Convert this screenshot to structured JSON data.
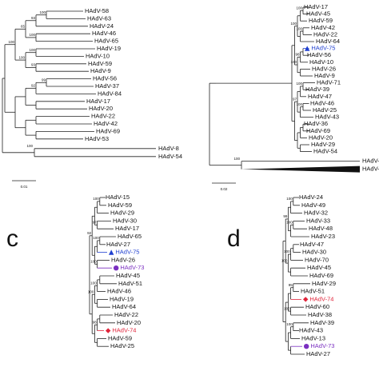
{
  "panels": [
    {
      "leaves": [
        "HAdV-58",
        "HAdV-63",
        "HAdV-24",
        "HAdV-46",
        "HAdV-65",
        "HAdV-19",
        "HAdV-10",
        "HAdV-59",
        "HAdV-9",
        "HAdV-56",
        "HAdV-37",
        "HAdV-84",
        "HAdV-17",
        "HAdV-20",
        "HAdV-22",
        "HAdV-42",
        "HAdV-69",
        "HAdV-53"
      ],
      "outgroups": [
        "HAdV-8",
        "HAdV-54"
      ],
      "bootstraps": [
        100,
        93,
        100,
        65,
        100,
        93,
        100,
        100,
        99,
        92
      ],
      "outgroup_support": 100,
      "scale": "0.01"
    },
    {
      "leaves": [
        "HAdV-17",
        "HAdV-45",
        "HAdV-59",
        "HAdV-42",
        "HAdV-22",
        "HAdV-64",
        {
          "label": "HAdV-75",
          "marker": "triangle",
          "color": "#1f3fd0"
        },
        "HAdV-56",
        "HAdV-10",
        "HAdV-26",
        "HAdV-9",
        "HAdV-71",
        "HAdV-39",
        "HAdV-47",
        "HAdV-46",
        "HAdV-25",
        "HAdV-43",
        "HAdV-36",
        "HAdV-69",
        "HAdV-20",
        "HAdV-29",
        "HAdV-54"
      ],
      "outgroups": [
        "HAdV-C",
        "HAdV-B"
      ],
      "bootstraps": [
        100,
        100,
        100,
        98,
        100,
        100,
        100,
        97
      ],
      "outgroup_support": 100,
      "scale": "0.02"
    },
    {
      "letter": "c",
      "leaves": [
        "HAdV-15",
        "HAdV-59",
        "HAdV-29",
        "HAdV-30",
        "HAdV-17",
        "HAdV-65",
        "HAdV-27",
        {
          "label": "HAdV-75",
          "marker": "triangle",
          "color": "#1f3fd0"
        },
        "HAdV-26",
        {
          "label": "HAdV-73",
          "marker": "circle",
          "color": "#7a2fc0"
        },
        "HAdV-45",
        "HAdV-51",
        "HAdV-46",
        "HAdV-19",
        "HAdV-64",
        "HAdV-22",
        "HAdV-20",
        {
          "label": "HAdV-74",
          "marker": "diamond",
          "color": "#e0243a"
        },
        "HAdV-59",
        "HAdV-25"
      ],
      "bootstraps": [
        100,
        97,
        100,
        100,
        92,
        100,
        100,
        98
      ]
    },
    {
      "letter": "d",
      "leaves": [
        "HAdV-24",
        "HAdV-49",
        "HAdV-32",
        "HAdV-33",
        "HAdV-48",
        "HAdV-23",
        "HAdV-47",
        "HAdV-30",
        "HAdV-70",
        "HAdV-45",
        "HAdV-69",
        "HAdV-29",
        "HAdV-51",
        {
          "label": "HAdV-74",
          "marker": "diamond",
          "color": "#e0243a"
        },
        "HAdV-60",
        "HAdV-38",
        "HAdV-39",
        "HAdV-43",
        "HAdV-13",
        {
          "label": "HAdV-73",
          "marker": "circle",
          "color": "#7a2fc0"
        },
        "HAdV-27"
      ],
      "bootstraps": [
        100,
        100,
        99,
        100,
        100,
        95,
        100,
        100
      ]
    }
  ]
}
